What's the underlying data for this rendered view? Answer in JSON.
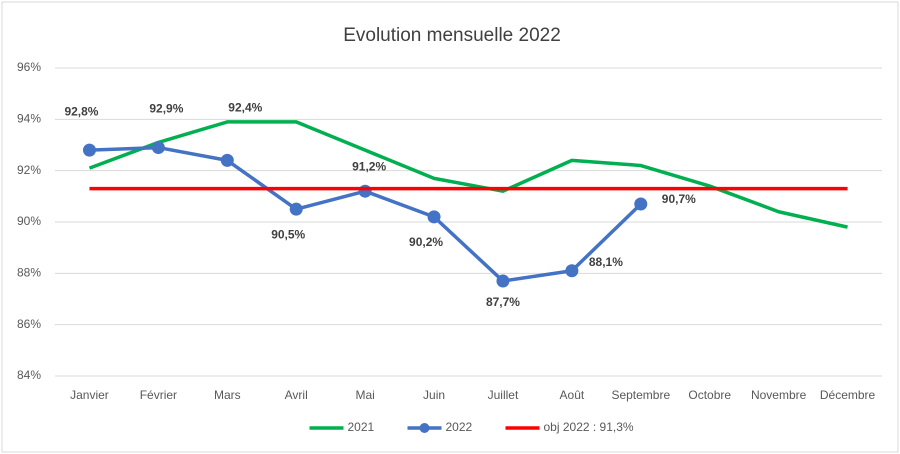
{
  "chart_data": {
    "type": "line",
    "title": "Evolution mensuelle 2022",
    "categories": [
      "Janvier",
      "Février",
      "Mars",
      "Avril",
      "Mai",
      "Juin",
      "Juillet",
      "Août",
      "Septembre",
      "Octobre",
      "Novembre",
      "Décembre"
    ],
    "series": [
      {
        "name": "2021",
        "color": "#00b050",
        "values": [
          92.1,
          93.1,
          93.9,
          93.9,
          92.8,
          91.7,
          91.2,
          92.4,
          92.2,
          91.4,
          90.4,
          89.8
        ]
      },
      {
        "name": "2022",
        "color": "#4472c4",
        "markers": true,
        "values": [
          92.8,
          92.9,
          92.4,
          90.5,
          91.2,
          90.2,
          87.7,
          88.1,
          90.7,
          null,
          null,
          null
        ],
        "value_labels": [
          "92,8%",
          "92,9%",
          "92,4%",
          "90,5%",
          "91,2%",
          "90,2%",
          "87,7%",
          "88,1%",
          "90,7%",
          null,
          null,
          null
        ]
      },
      {
        "name": "obj 2022 : 91,3%",
        "color": "#ff0000",
        "values": [
          91.3,
          91.3,
          91.3,
          91.3,
          91.3,
          91.3,
          91.3,
          91.3,
          91.3,
          91.3,
          91.3,
          91.3
        ]
      }
    ],
    "ylim": [
      84,
      96
    ],
    "yticks": [
      {
        "value": 84,
        "label": "84%"
      },
      {
        "value": 86,
        "label": "86%"
      },
      {
        "value": 88,
        "label": "88%"
      },
      {
        "value": 90,
        "label": "90%"
      },
      {
        "value": 92,
        "label": "92%"
      },
      {
        "value": 94,
        "label": "94%"
      },
      {
        "value": 96,
        "label": "96%"
      }
    ],
    "grid": true,
    "legend": "bottom"
  }
}
